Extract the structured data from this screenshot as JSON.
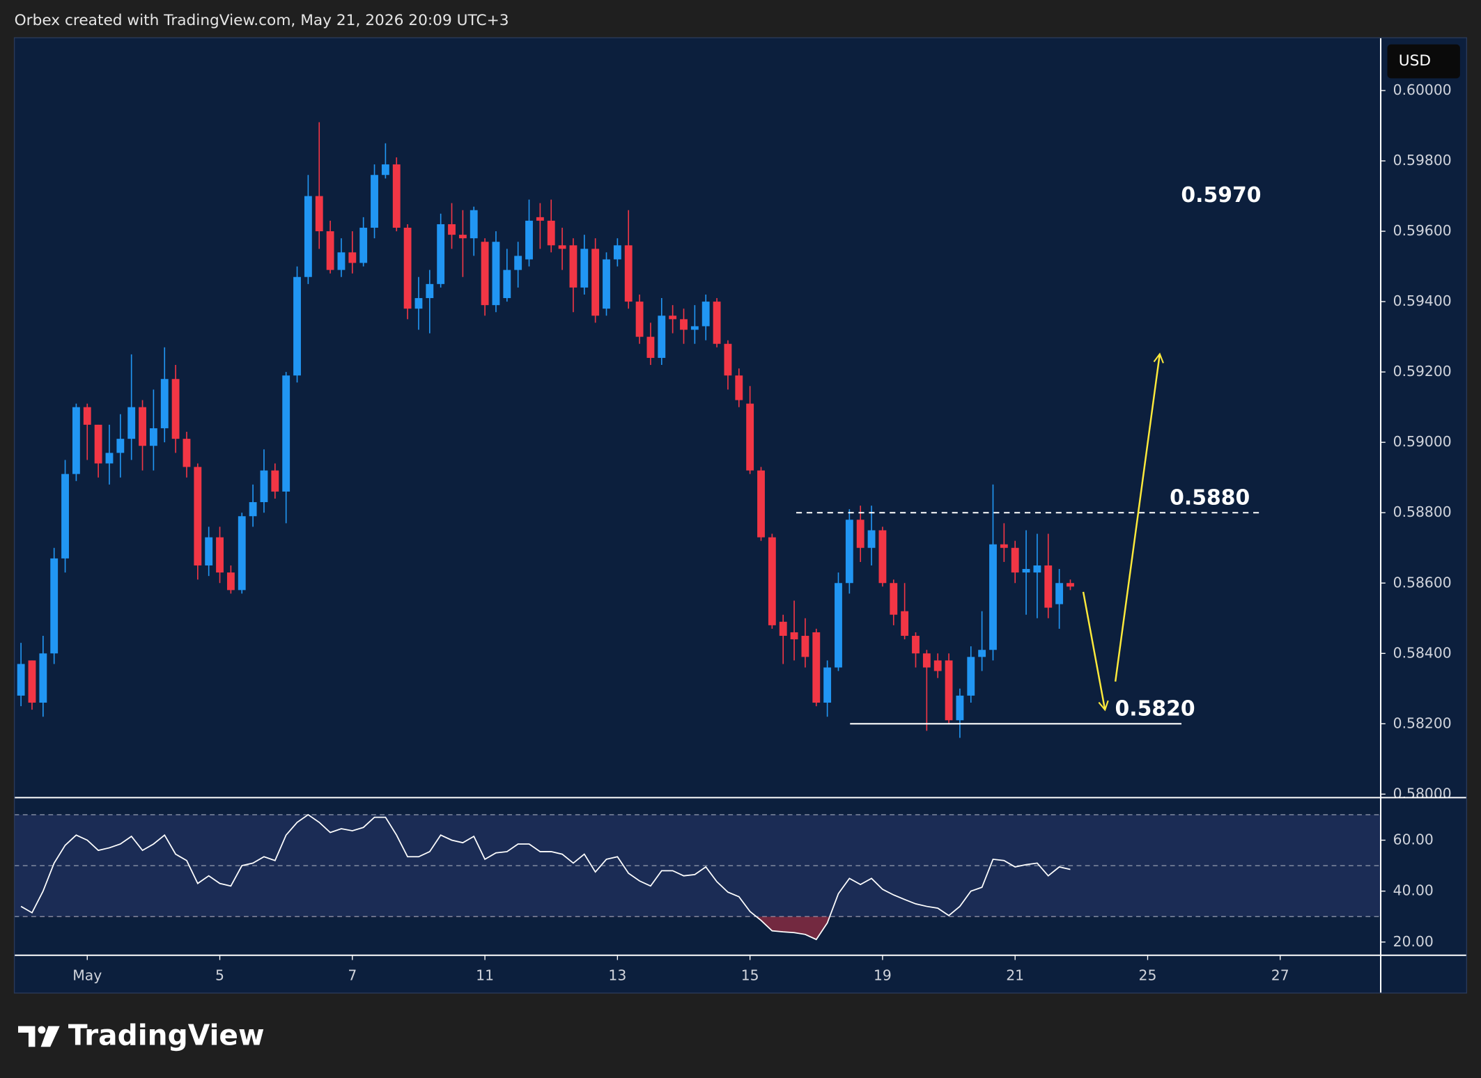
{
  "chart_data": {
    "type": "candlestick",
    "header": "Orbex created with TradingView.com, May 21, 2026 20:09 UTC+3",
    "currency": "USD",
    "brand": "TradingView",
    "up_color": "#2196f3",
    "down_color": "#f23645",
    "open": [
      0.5828,
      0.5838,
      0.5826,
      0.584,
      0.5867,
      0.5891,
      0.591,
      0.5905,
      0.5894,
      0.5897,
      0.5901,
      0.591,
      0.5899,
      0.5904,
      0.5918,
      0.5901,
      0.5893,
      0.5865,
      0.5873,
      0.5863,
      0.5858,
      0.5879,
      0.5883,
      0.5892,
      0.5886,
      0.5919,
      0.5947,
      0.597,
      0.596,
      0.5949,
      0.5954,
      0.5951,
      0.5961,
      0.5976,
      0.5979,
      0.5961,
      0.5938,
      0.5941,
      0.5945,
      0.5962,
      0.5959,
      0.5958,
      0.5957,
      0.5939,
      0.5941,
      0.5949,
      0.5952,
      0.5964,
      0.5963,
      0.5956,
      0.5956,
      0.5944,
      0.5955,
      0.5938,
      0.5952,
      0.5956,
      0.594,
      0.593,
      0.5924,
      0.5936,
      0.5935,
      0.5932,
      0.5933,
      0.594,
      0.5928,
      0.5919,
      0.5911,
      0.5892,
      0.5873,
      0.5849,
      0.5846,
      0.5845,
      0.5846,
      0.5826,
      0.5836,
      0.586,
      0.5878,
      0.587,
      0.5875,
      0.586,
      0.5852,
      0.5845,
      0.584,
      0.5838,
      0.5838,
      0.5821,
      0.5828,
      0.5839,
      0.5841,
      0.5871,
      0.587,
      0.5863,
      0.5863,
      0.5865,
      0.5854,
      0.586
    ],
    "high": [
      0.5843,
      0.5838,
      0.5845,
      0.587,
      0.5895,
      0.5911,
      0.5911,
      0.5905,
      0.5905,
      0.5908,
      0.5925,
      0.5912,
      0.5915,
      0.5927,
      0.5922,
      0.5903,
      0.5894,
      0.5876,
      0.5876,
      0.5865,
      0.588,
      0.5888,
      0.5898,
      0.5894,
      0.592,
      0.595,
      0.5976,
      0.5991,
      0.5963,
      0.5958,
      0.596,
      0.5964,
      0.5979,
      0.5985,
      0.5981,
      0.5962,
      0.5947,
      0.5949,
      0.5965,
      0.5968,
      0.5966,
      0.5967,
      0.5958,
      0.596,
      0.5955,
      0.5957,
      0.5969,
      0.5968,
      0.5969,
      0.5961,
      0.5958,
      0.5959,
      0.5958,
      0.5954,
      0.5958,
      0.5966,
      0.5942,
      0.5934,
      0.5941,
      0.5939,
      0.5938,
      0.5939,
      0.5942,
      0.5941,
      0.5929,
      0.5921,
      0.5916,
      0.5893,
      0.5874,
      0.5851,
      0.5855,
      0.585,
      0.5847,
      0.5838,
      0.5863,
      0.5881,
      0.5882,
      0.5882,
      0.5876,
      0.5861,
      0.586,
      0.5846,
      0.5841,
      0.584,
      0.584,
      0.583,
      0.5842,
      0.5852,
      0.5888,
      0.5877,
      0.5872,
      0.5875,
      0.5874,
      0.5874,
      0.5864,
      0.5861
    ],
    "low": [
      0.5825,
      0.5824,
      0.5822,
      0.5837,
      0.5863,
      0.5889,
      0.5895,
      0.589,
      0.5888,
      0.589,
      0.5895,
      0.5892,
      0.5892,
      0.59,
      0.5897,
      0.589,
      0.5861,
      0.5862,
      0.586,
      0.5857,
      0.5857,
      0.5876,
      0.588,
      0.5884,
      0.5877,
      0.5917,
      0.5945,
      0.5955,
      0.5948,
      0.5947,
      0.5948,
      0.595,
      0.5958,
      0.5975,
      0.596,
      0.5935,
      0.5932,
      0.5931,
      0.5944,
      0.5955,
      0.5947,
      0.5953,
      0.5936,
      0.5937,
      0.594,
      0.5944,
      0.595,
      0.5955,
      0.5954,
      0.5949,
      0.5937,
      0.5942,
      0.5934,
      0.5936,
      0.595,
      0.5938,
      0.5928,
      0.5922,
      0.5922,
      0.5931,
      0.5928,
      0.5928,
      0.5929,
      0.5927,
      0.5915,
      0.591,
      0.5891,
      0.5872,
      0.5847,
      0.5837,
      0.5838,
      0.5836,
      0.5825,
      0.5822,
      0.5835,
      0.5857,
      0.5866,
      0.5865,
      0.5859,
      0.5848,
      0.5844,
      0.5836,
      0.5818,
      0.5833,
      0.582,
      0.5816,
      0.5826,
      0.5835,
      0.5838,
      0.5866,
      0.586,
      0.5851,
      0.585,
      0.585,
      0.5847,
      0.5858
    ],
    "close": [
      0.5837,
      0.5826,
      0.584,
      0.5867,
      0.5891,
      0.591,
      0.5905,
      0.5894,
      0.5897,
      0.5901,
      0.591,
      0.5899,
      0.5904,
      0.5918,
      0.5901,
      0.5893,
      0.5865,
      0.5873,
      0.5863,
      0.5858,
      0.5879,
      0.5883,
      0.5892,
      0.5886,
      0.5919,
      0.5947,
      0.597,
      0.596,
      0.5949,
      0.5954,
      0.5951,
      0.5961,
      0.5976,
      0.5979,
      0.5961,
      0.5938,
      0.5941,
      0.5945,
      0.5962,
      0.5959,
      0.5958,
      0.5966,
      0.5939,
      0.5957,
      0.5949,
      0.5953,
      0.5963,
      0.5963,
      0.5956,
      0.5955,
      0.5944,
      0.5955,
      0.5936,
      0.5952,
      0.5956,
      0.594,
      0.593,
      0.5924,
      0.5936,
      0.5935,
      0.5932,
      0.5933,
      0.594,
      0.5928,
      0.5919,
      0.5912,
      0.5892,
      0.5873,
      0.5848,
      0.5845,
      0.5844,
      0.5839,
      0.5826,
      0.5836,
      0.586,
      0.5878,
      0.587,
      0.5875,
      0.586,
      0.5851,
      0.5845,
      0.584,
      0.5836,
      0.5835,
      0.5821,
      0.5828,
      0.5839,
      0.5841,
      0.5871,
      0.587,
      0.5863,
      0.5864,
      0.5865,
      0.5853,
      0.586,
      0.5859
    ],
    "xlim": [
      -0.6,
      123.1
    ],
    "xticks": [
      {
        "value": 6,
        "label": "May"
      },
      {
        "value": 18,
        "label": "5"
      },
      {
        "value": 30,
        "label": "7"
      },
      {
        "value": 42,
        "label": "11"
      },
      {
        "value": 54,
        "label": "13"
      },
      {
        "value": 66,
        "label": "15"
      },
      {
        "value": 78,
        "label": "19"
      },
      {
        "value": 90,
        "label": "21"
      },
      {
        "value": 102,
        "label": "25"
      },
      {
        "value": 114,
        "label": "27"
      }
    ],
    "ylim": [
      0.5799,
      0.6015
    ],
    "yticks": [
      {
        "value": 0.58,
        "label": "0.58000"
      },
      {
        "value": 0.582,
        "label": "0.58200"
      },
      {
        "value": 0.584,
        "label": "0.58400"
      },
      {
        "value": 0.586,
        "label": "0.58600"
      },
      {
        "value": 0.588,
        "label": "0.58800"
      },
      {
        "value": 0.59,
        "label": "0.59000"
      },
      {
        "value": 0.592,
        "label": "0.59200"
      },
      {
        "value": 0.594,
        "label": "0.59400"
      },
      {
        "value": 0.596,
        "label": "0.59600"
      },
      {
        "value": 0.598,
        "label": "0.59800"
      },
      {
        "value": 0.6,
        "label": "0.60000"
      }
    ],
    "annotations": [
      {
        "text": "0.5970",
        "value": 0.597
      },
      {
        "text": "0.5880",
        "value": 0.588,
        "line": "dashed"
      },
      {
        "text": "0.5820",
        "value": 0.582,
        "line": "solid"
      }
    ],
    "rsi": {
      "color": "#ffffff",
      "values": [
        34,
        31.5,
        40,
        51,
        58,
        62,
        60,
        56,
        57,
        58.5,
        61.5,
        56,
        58.5,
        62,
        54.5,
        52,
        43,
        46,
        43,
        42,
        50,
        51,
        53.5,
        52,
        62,
        67,
        70,
        67,
        63,
        64.5,
        63.7,
        65,
        69,
        69,
        62,
        53.5,
        53.5,
        55.5,
        62,
        60,
        59,
        61.5,
        52.5,
        55,
        55.5,
        58.5,
        58.5,
        55.5,
        55.5,
        54.5,
        51,
        54.5,
        47.5,
        52.5,
        53.5,
        47,
        44,
        42,
        48,
        48,
        46,
        46.5,
        49.5,
        43.7,
        39.6,
        37.8,
        32,
        28.5,
        24.4,
        24,
        23.7,
        23,
        21,
        27.5,
        39,
        45,
        42.6,
        45,
        40.7,
        38.5,
        36.7,
        35,
        34,
        33.3,
        30.4,
        34,
        40,
        41.5,
        52.5,
        52,
        49.5,
        50.4,
        51,
        46,
        49.5,
        48.5
      ],
      "ylim": [
        14.8,
        76.7
      ],
      "yticks": [
        {
          "value": 20,
          "label": "20.00"
        },
        {
          "value": 40,
          "label": "40.00"
        },
        {
          "value": 60,
          "label": "60.00"
        }
      ],
      "bands": [
        30,
        50,
        70
      ]
    }
  }
}
